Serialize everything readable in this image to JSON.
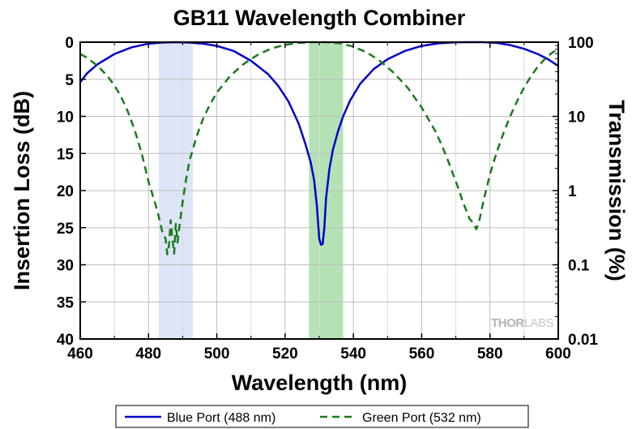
{
  "chart_data": {
    "type": "line",
    "title": "GB11 Wavelength Combiner",
    "xlabel": "Wavelength (nm)",
    "ylabel": "Insertion Loss (dB)",
    "y2label": "Transmission (%)",
    "xlim": [
      460,
      600
    ],
    "ylim": [
      0,
      40
    ],
    "y_inverted": true,
    "y2_scale": "log",
    "y2lim": [
      0.01,
      100
    ],
    "x_ticks": [
      "460",
      "480",
      "500",
      "520",
      "540",
      "560",
      "580",
      "600"
    ],
    "y_ticks": [
      "0",
      "5",
      "10",
      "15",
      "20",
      "25",
      "30",
      "35",
      "40"
    ],
    "y2_ticks": [
      "100",
      "10",
      "1",
      "0.1",
      "0.01"
    ],
    "grid": true,
    "legend_position": "bottom",
    "bands": [
      {
        "x_start": 483,
        "x_end": 493,
        "color": "#dde5f7"
      },
      {
        "x_start": 527,
        "x_end": 537,
        "color": "#b4e2b4"
      }
    ],
    "series": [
      {
        "name": "Blue Port (488 nm)",
        "color": "#0000cc",
        "style": "solid",
        "x": [
          460,
          462,
          465,
          470,
          475,
          480,
          484,
          488,
          492,
          496,
          500,
          505,
          510,
          515,
          518,
          521,
          524,
          526,
          527.5,
          528.5,
          529.3,
          530,
          530.5,
          531,
          531.5,
          532,
          533,
          534,
          535.5,
          537,
          539,
          542,
          546,
          550,
          555,
          560,
          565,
          570,
          575,
          578,
          582,
          586,
          590,
          594,
          597,
          600
        ],
        "y": [
          5.4,
          4.2,
          3.0,
          1.6,
          0.7,
          0.2,
          0.05,
          0.0,
          0.05,
          0.2,
          0.5,
          1.2,
          2.5,
          4.3,
          5.9,
          8.0,
          11.0,
          13.8,
          16.2,
          18.6,
          22.0,
          26.5,
          27.3,
          27.2,
          25.0,
          21.0,
          17.0,
          14.5,
          12.0,
          10.0,
          7.9,
          5.6,
          3.6,
          2.3,
          1.2,
          0.5,
          0.15,
          0.02,
          0.0,
          0.0,
          0.1,
          0.4,
          0.9,
          1.6,
          2.3,
          3.2
        ]
      },
      {
        "name": "Green Port (532 nm)",
        "color": "#1a7a1a",
        "style": "dashed",
        "x": [
          460,
          462,
          464,
          466,
          468,
          470,
          472,
          474,
          476,
          478,
          480,
          482,
          483,
          484,
          485,
          485.5,
          486,
          486.5,
          487,
          487.5,
          488,
          488.5,
          489,
          490,
          491,
          492,
          494,
          496,
          498,
          500,
          504,
          508,
          512,
          516,
          520,
          524,
          528,
          532,
          536,
          540,
          544,
          548,
          552,
          556,
          560,
          564,
          566,
          568,
          570,
          571,
          572,
          573,
          574,
          575,
          576,
          577,
          578,
          579,
          580,
          582,
          584,
          586,
          588,
          590,
          592,
          594,
          596,
          598,
          600
        ],
        "y": [
          1.6,
          2.1,
          2.8,
          3.6,
          4.6,
          5.8,
          7.4,
          9.4,
          11.9,
          15.0,
          18.8,
          21.8,
          23.5,
          25.5,
          26.5,
          28.6,
          27.4,
          24.0,
          26.5,
          28.5,
          24.5,
          27.0,
          25.0,
          21.5,
          18.5,
          16.0,
          12.8,
          10.3,
          8.4,
          6.8,
          4.5,
          2.9,
          1.7,
          0.85,
          0.35,
          0.1,
          0.0,
          0.0,
          0.15,
          0.6,
          1.4,
          2.6,
          4.2,
          6.2,
          8.8,
          12.0,
          14.0,
          16.3,
          18.8,
          20.0,
          21.5,
          22.6,
          23.8,
          24.3,
          25.2,
          23.8,
          21.6,
          19.7,
          17.8,
          14.8,
          12.2,
          9.9,
          7.9,
          6.1,
          4.6,
          3.3,
          2.3,
          1.5,
          0.9
        ]
      }
    ],
    "watermark": {
      "bold": "THOR",
      "light": "LABS"
    }
  }
}
